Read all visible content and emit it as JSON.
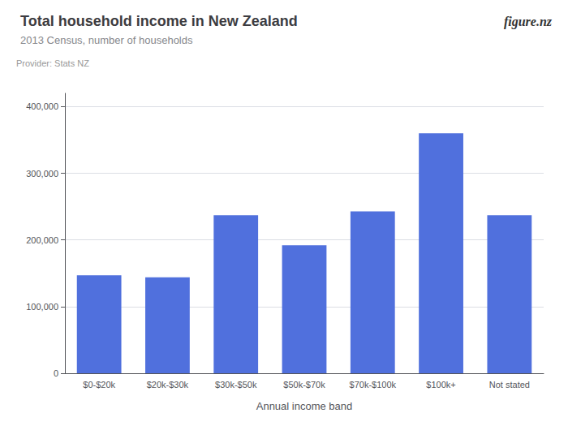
{
  "chart_data": {
    "type": "bar",
    "title": "Total household income in New Zealand",
    "subtitle": "2013 Census, number of households",
    "annotations": [
      "Provider: Stats NZ",
      "figure.nz"
    ],
    "xlabel": "Annual income band",
    "categories": [
      "$0-$20k",
      "$20k-$30k",
      "$30k-$50k",
      "$50k-$70k",
      "$70k-$100k",
      "$100k+",
      "Not stated"
    ],
    "values": [
      147000,
      144000,
      237000,
      192000,
      243000,
      360000,
      237000
    ],
    "ylim": [
      0,
      420000
    ],
    "yticks": [
      0,
      {
        "value": 100000,
        "label": "100,000"
      },
      {
        "value": 200000,
        "label": "200,000"
      },
      {
        "value": 300000,
        "label": "300,000"
      },
      {
        "value": 400000,
        "label": "400,000"
      }
    ],
    "grid": true
  }
}
